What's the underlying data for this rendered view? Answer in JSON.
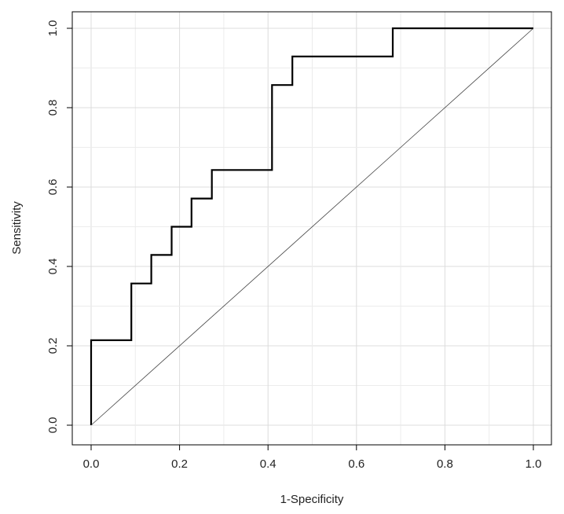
{
  "chart_data": {
    "type": "line",
    "title": "",
    "xlabel": "1-Specificity",
    "ylabel": "Sensitivity",
    "xlim": [
      0.0,
      1.0
    ],
    "ylim": [
      0.0,
      1.0
    ],
    "x_ticks": [
      "0.0",
      "0.2",
      "0.4",
      "0.6",
      "0.8",
      "1.0"
    ],
    "y_ticks": [
      "0.0",
      "0.2",
      "0.4",
      "0.6",
      "0.8",
      "1.0"
    ],
    "grid": true,
    "legend": "none",
    "series": [
      {
        "style": "step",
        "color": "#000000",
        "points": [
          [
            0.0,
            0.0
          ],
          [
            0.0,
            0.214
          ],
          [
            0.091,
            0.214
          ],
          [
            0.091,
            0.357
          ],
          [
            0.136,
            0.357
          ],
          [
            0.136,
            0.429
          ],
          [
            0.182,
            0.429
          ],
          [
            0.182,
            0.5
          ],
          [
            0.227,
            0.5
          ],
          [
            0.227,
            0.571
          ],
          [
            0.273,
            0.571
          ],
          [
            0.273,
            0.643
          ],
          [
            0.409,
            0.643
          ],
          [
            0.409,
            0.857
          ],
          [
            0.455,
            0.857
          ],
          [
            0.455,
            0.929
          ],
          [
            0.682,
            0.929
          ],
          [
            0.682,
            1.0
          ],
          [
            1.0,
            1.0
          ]
        ]
      },
      {
        "style": "reference-diagonal",
        "color": "#444444",
        "points": [
          [
            0.0,
            0.0
          ],
          [
            1.0,
            1.0
          ]
        ]
      }
    ]
  }
}
